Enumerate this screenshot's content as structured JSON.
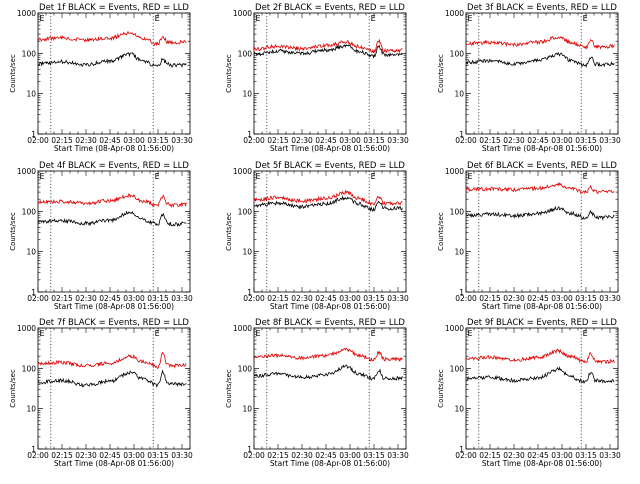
{
  "colors": {
    "events": "#000000",
    "lld": "#e00000",
    "axes": "#000000",
    "background": "#ffffff"
  },
  "chart_data": [
    {
      "type": "line",
      "title": "Det 1f BLACK = Events, RED = LLD",
      "xlabel": "Start Time (08-Apr-08 01:56:00)",
      "ylabel": "Counts/sec",
      "yscale": "log",
      "ylim": [
        1,
        1000
      ],
      "ytick_labels": [
        "1",
        "10",
        "100",
        "1000"
      ],
      "xlim": [
        "02:00",
        "03:35"
      ],
      "xtick_labels": [
        "02:00",
        "02:15",
        "02:30",
        "02:45",
        "03:00",
        "03:15",
        "03:30"
      ],
      "x": [
        "02:00",
        "02:15",
        "02:30",
        "02:45",
        "02:58",
        "03:05",
        "03:15",
        "03:18",
        "03:21",
        "03:24",
        "03:33"
      ],
      "vlines": [
        "02:08",
        "03:12"
      ],
      "marker_label": "E",
      "series": [
        {
          "name": "RED = LLD",
          "values": [
            220,
            245,
            210,
            240,
            330,
            240,
            170,
            260,
            190,
            185,
            190
          ]
        },
        {
          "name": "BLACK = Events",
          "values": [
            55,
            62,
            52,
            65,
            95,
            65,
            47,
            70,
            53,
            50,
            52
          ]
        }
      ]
    },
    {
      "type": "line",
      "title": "Det 2f BLACK = Events, RED = LLD",
      "xlabel": "Start Time (08-Apr-08 01:56:00)",
      "ylabel": "Counts/sec",
      "yscale": "log",
      "ylim": [
        1,
        1000
      ],
      "ytick_labels": [
        "1",
        "10",
        "100",
        "1000"
      ],
      "xlim": [
        "02:00",
        "03:35"
      ],
      "xtick_labels": [
        "02:00",
        "02:15",
        "02:30",
        "02:45",
        "03:00",
        "03:15",
        "03:30"
      ],
      "x": [
        "02:00",
        "02:15",
        "02:30",
        "02:45",
        "02:58",
        "03:05",
        "03:15",
        "03:18",
        "03:21",
        "03:24",
        "03:33"
      ],
      "vlines": [
        "02:08",
        "03:12"
      ],
      "marker_label": "E",
      "series": [
        {
          "name": "RED = LLD",
          "values": [
            125,
            150,
            130,
            155,
            190,
            150,
            110,
            200,
            120,
            115,
            120
          ]
        },
        {
          "name": "BLACK = Events",
          "values": [
            95,
            115,
            100,
            120,
            150,
            115,
            85,
            150,
            95,
            90,
            95
          ]
        }
      ]
    },
    {
      "type": "line",
      "title": "Det 3f BLACK = Events, RED = LLD",
      "xlabel": "Start Time (08-Apr-08 01:56:00)",
      "ylabel": "Counts/sec",
      "yscale": "log",
      "ylim": [
        1,
        1000
      ],
      "ytick_labels": [
        "1",
        "10",
        "100",
        "1000"
      ],
      "xlim": [
        "02:00",
        "03:35"
      ],
      "xtick_labels": [
        "02:00",
        "02:15",
        "02:30",
        "02:45",
        "03:00",
        "03:15",
        "03:30"
      ],
      "x": [
        "02:00",
        "02:15",
        "02:30",
        "02:45",
        "02:58",
        "03:05",
        "03:15",
        "03:18",
        "03:21",
        "03:24",
        "03:33"
      ],
      "vlines": [
        "02:08",
        "03:12"
      ],
      "marker_label": "E",
      "series": [
        {
          "name": "RED = LLD",
          "values": [
            175,
            185,
            165,
            190,
            250,
            190,
            140,
            220,
            150,
            145,
            150
          ]
        },
        {
          "name": "BLACK = Events",
          "values": [
            60,
            65,
            55,
            68,
            95,
            68,
            50,
            80,
            55,
            52,
            55
          ]
        }
      ]
    },
    {
      "type": "line",
      "title": "Det 4f BLACK = Events, RED = LLD",
      "xlabel": "Start Time (08-Apr-08 01:56:00)",
      "ylabel": "Counts/sec",
      "yscale": "log",
      "ylim": [
        1,
        1000
      ],
      "ytick_labels": [
        "1",
        "10",
        "100",
        "1000"
      ],
      "xlim": [
        "02:00",
        "03:35"
      ],
      "xtick_labels": [
        "02:00",
        "02:15",
        "02:30",
        "02:45",
        "03:00",
        "03:15",
        "03:30"
      ],
      "x": [
        "02:00",
        "02:15",
        "02:30",
        "02:45",
        "02:58",
        "03:05",
        "03:15",
        "03:18",
        "03:21",
        "03:24",
        "03:33"
      ],
      "vlines": [
        "02:08",
        "03:12"
      ],
      "marker_label": "E",
      "series": [
        {
          "name": "RED = LLD",
          "values": [
            170,
            175,
            160,
            185,
            250,
            180,
            140,
            240,
            150,
            140,
            150
          ]
        },
        {
          "name": "BLACK = Events",
          "values": [
            55,
            58,
            50,
            60,
            95,
            62,
            48,
            80,
            52,
            48,
            50
          ]
        }
      ]
    },
    {
      "type": "line",
      "title": "Det 5f BLACK = Events, RED = LLD",
      "xlabel": "Start Time (08-Apr-08 01:56:00)",
      "ylabel": "Counts/sec",
      "yscale": "log",
      "ylim": [
        1,
        1000
      ],
      "ytick_labels": [
        "1",
        "10",
        "100",
        "1000"
      ],
      "xlim": [
        "02:00",
        "03:35"
      ],
      "xtick_labels": [
        "02:00",
        "02:15",
        "02:30",
        "02:45",
        "03:00",
        "03:15",
        "03:30"
      ],
      "x": [
        "02:00",
        "02:15",
        "02:30",
        "02:45",
        "02:58",
        "03:05",
        "03:15",
        "03:18",
        "03:21",
        "03:24",
        "03:33"
      ],
      "vlines": [
        "02:08",
        "03:12"
      ],
      "marker_label": "E",
      "series": [
        {
          "name": "RED = LLD",
          "values": [
            190,
            220,
            180,
            210,
            290,
            210,
            150,
            240,
            160,
            155,
            160
          ]
        },
        {
          "name": "BLACK = Events",
          "values": [
            140,
            160,
            130,
            155,
            220,
            155,
            110,
            180,
            120,
            115,
            120
          ]
        }
      ]
    },
    {
      "type": "line",
      "title": "Det 6f BLACK = Events, RED = LLD",
      "xlabel": "Start Time (08-Apr-08 01:56:00)",
      "ylabel": "Counts/sec",
      "yscale": "log",
      "ylim": [
        1,
        1000
      ],
      "ytick_labels": [
        "1",
        "10",
        "100",
        "1000"
      ],
      "xlim": [
        "02:00",
        "03:35"
      ],
      "xtick_labels": [
        "02:00",
        "02:15",
        "02:30",
        "02:45",
        "03:00",
        "03:15",
        "03:30"
      ],
      "x": [
        "02:00",
        "02:15",
        "02:30",
        "02:45",
        "02:58",
        "03:05",
        "03:15",
        "03:18",
        "03:21",
        "03:24",
        "03:33"
      ],
      "vlines": [
        "02:08",
        "03:12"
      ],
      "marker_label": "E",
      "series": [
        {
          "name": "RED = LLD",
          "values": [
            350,
            365,
            340,
            370,
            460,
            370,
            300,
            390,
            310,
            300,
            310
          ]
        },
        {
          "name": "BLACK = Events",
          "values": [
            80,
            85,
            78,
            88,
            120,
            90,
            70,
            95,
            72,
            70,
            72
          ]
        }
      ]
    },
    {
      "type": "line",
      "title": "Det 7f BLACK = Events, RED = LLD",
      "xlabel": "Start Time (08-Apr-08 01:56:00)",
      "ylabel": "Counts/sec",
      "yscale": "log",
      "ylim": [
        1,
        1000
      ],
      "ytick_labels": [
        "1",
        "10",
        "100",
        "1000"
      ],
      "xlim": [
        "02:00",
        "03:35"
      ],
      "xtick_labels": [
        "02:00",
        "02:15",
        "02:30",
        "02:45",
        "03:00",
        "03:15",
        "03:30"
      ],
      "x": [
        "02:00",
        "02:15",
        "02:30",
        "02:45",
        "02:58",
        "03:05",
        "03:15",
        "03:18",
        "03:21",
        "03:24",
        "03:33"
      ],
      "vlines": [
        "02:08",
        "03:12"
      ],
      "marker_label": "E",
      "series": [
        {
          "name": "RED = LLD",
          "values": [
            130,
            140,
            115,
            135,
            200,
            150,
            110,
            230,
            120,
            115,
            120
          ]
        },
        {
          "name": "BLACK = Events",
          "values": [
            45,
            50,
            38,
            48,
            80,
            55,
            38,
            80,
            42,
            40,
            42
          ]
        }
      ]
    },
    {
      "type": "line",
      "title": "Det 8f BLACK = Events, RED = LLD",
      "xlabel": "Start Time (08-Apr-08 01:56:00)",
      "ylabel": "Counts/sec",
      "yscale": "log",
      "ylim": [
        1,
        1000
      ],
      "ytick_labels": [
        "1",
        "10",
        "100",
        "1000"
      ],
      "xlim": [
        "02:00",
        "03:35"
      ],
      "xtick_labels": [
        "02:00",
        "02:15",
        "02:30",
        "02:45",
        "03:00",
        "03:15",
        "03:30"
      ],
      "x": [
        "02:00",
        "02:15",
        "02:30",
        "02:45",
        "02:58",
        "03:05",
        "03:15",
        "03:18",
        "03:21",
        "03:24",
        "03:33"
      ],
      "vlines": [
        "02:08",
        "03:12"
      ],
      "marker_label": "E",
      "series": [
        {
          "name": "RED = LLD",
          "values": [
            190,
            210,
            180,
            205,
            290,
            210,
            160,
            250,
            170,
            165,
            170
          ]
        },
        {
          "name": "BLACK = Events",
          "values": [
            65,
            72,
            60,
            70,
            110,
            75,
            55,
            90,
            58,
            55,
            58
          ]
        }
      ]
    },
    {
      "type": "line",
      "title": "Det 9f BLACK = Events, RED = LLD",
      "xlabel": "Start Time (08-Apr-08 01:56:00)",
      "ylabel": "Counts/sec",
      "yscale": "log",
      "ylim": [
        1,
        1000
      ],
      "ytick_labels": [
        "1",
        "10",
        "100",
        "1000"
      ],
      "xlim": [
        "02:00",
        "03:35"
      ],
      "xtick_labels": [
        "02:00",
        "02:15",
        "02:30",
        "02:45",
        "03:00",
        "03:15",
        "03:30"
      ],
      "x": [
        "02:00",
        "02:15",
        "02:30",
        "02:45",
        "02:58",
        "03:05",
        "03:15",
        "03:18",
        "03:21",
        "03:24",
        "03:33"
      ],
      "vlines": [
        "02:08",
        "03:12"
      ],
      "marker_label": "E",
      "series": [
        {
          "name": "RED = LLD",
          "values": [
            170,
            190,
            160,
            185,
            270,
            195,
            145,
            230,
            150,
            145,
            150
          ]
        },
        {
          "name": "BLACK = Events",
          "values": [
            55,
            60,
            50,
            58,
            95,
            62,
            45,
            80,
            50,
            48,
            50
          ]
        }
      ]
    }
  ]
}
